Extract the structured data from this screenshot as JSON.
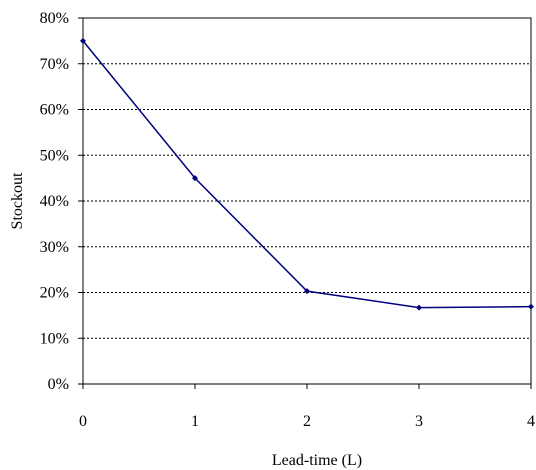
{
  "chart_data": {
    "type": "line",
    "xlabel": "Lead-time (L)",
    "ylabel": "Stockout",
    "x": [
      0,
      1,
      2,
      3,
      4
    ],
    "xticks": [
      "0",
      "1",
      "2",
      "3",
      "4"
    ],
    "yticks": [
      "0%",
      "10%",
      "20%",
      "30%",
      "40%",
      "50%",
      "60%",
      "70%",
      "80%"
    ],
    "ylim": [
      0,
      80
    ],
    "xlim": [
      0,
      4
    ],
    "grid": "horizontal dashed",
    "series": [
      {
        "values": [
          75,
          45,
          20.3,
          16.7,
          16.9
        ]
      }
    ],
    "colors": {
      "line": "#000080",
      "grid": "#000000",
      "axis": "#000000"
    }
  }
}
